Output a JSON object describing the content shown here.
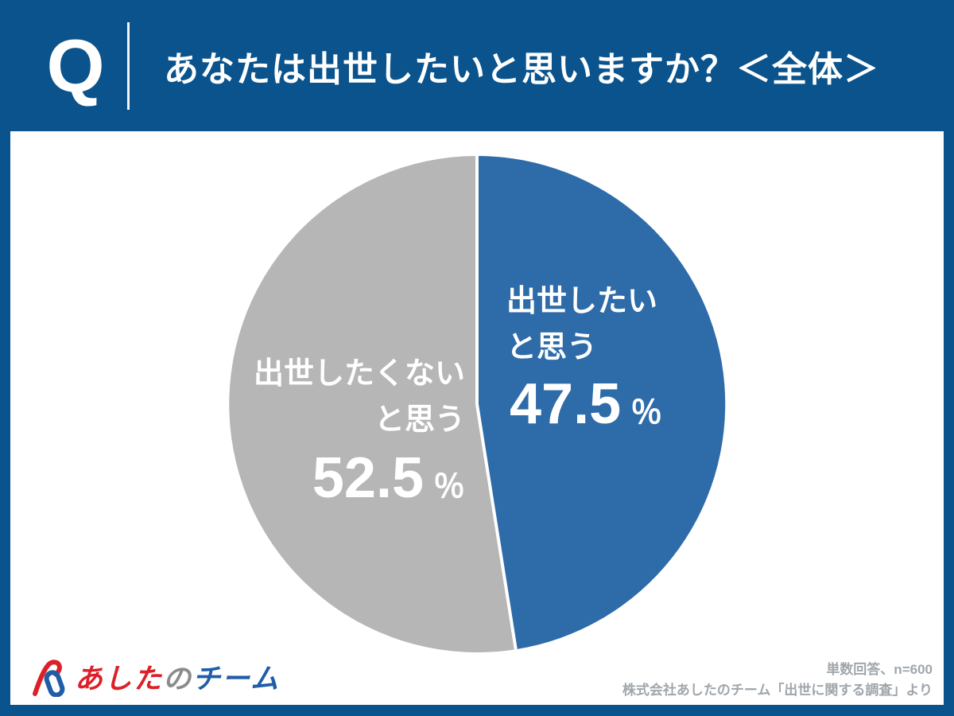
{
  "header": {
    "q_label": "Q",
    "title": "あなたは出世したいと思いますか？＜全体＞"
  },
  "chart_data": {
    "type": "pie",
    "title": "あなたは出世したいと思いますか？＜全体＞",
    "start_angle_deg": 0,
    "direction": "clockwise",
    "separator_color": "#ffffff",
    "slices": [
      {
        "label": "出世したいと思う",
        "label_lines": [
          "出世したい",
          "と思う"
        ],
        "value": 47.5,
        "unit": "％",
        "color": "#2e6ba9"
      },
      {
        "label": "出世したくないと思う",
        "label_lines": [
          "出世したくない",
          "と思う"
        ],
        "value": 52.5,
        "unit": "％",
        "color": "#b6b6b6"
      }
    ]
  },
  "footer": {
    "logo": {
      "icon": "paperclip-monogram-icon",
      "text_red": "あした",
      "text_gray": "の",
      "text_blue": "チーム",
      "red": "#dc2028",
      "gray": "#8b8b8b",
      "blue": "#1f5da8"
    },
    "note_line1": "単数回答、n=600",
    "note_line2": "株式会社あしたのチーム「出世に関する調査」より"
  },
  "colors": {
    "background_navy": "#0a538c",
    "card_white": "#ffffff",
    "pie_blue": "#2e6ba9",
    "pie_gray": "#b6b6b6",
    "note_gray": "#a0a6ab"
  }
}
